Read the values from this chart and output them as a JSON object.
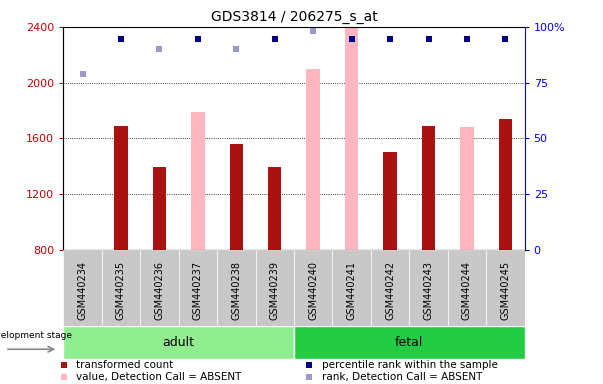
{
  "title": "GDS3814 / 206275_s_at",
  "samples": [
    "GSM440234",
    "GSM440235",
    "GSM440236",
    "GSM440237",
    "GSM440238",
    "GSM440239",
    "GSM440240",
    "GSM440241",
    "GSM440242",
    "GSM440243",
    "GSM440244",
    "GSM440245"
  ],
  "bar_values": [
    null,
    1690,
    1390,
    null,
    1560,
    1390,
    null,
    null,
    1500,
    1690,
    null,
    1740
  ],
  "absent_bar_values": [
    null,
    null,
    null,
    1790,
    null,
    null,
    2100,
    2430,
    null,
    null,
    1680,
    null
  ],
  "rank_values": [
    null,
    2310,
    null,
    2310,
    null,
    2310,
    null,
    2310,
    2310,
    2310,
    2310,
    2310
  ],
  "absent_rank_values": [
    2060,
    null,
    2240,
    null,
    2240,
    null,
    2370,
    null,
    null,
    null,
    null,
    null
  ],
  "ylim": [
    800,
    2400
  ],
  "y2lim": [
    0,
    100
  ],
  "yticks": [
    800,
    1200,
    1600,
    2000,
    2400
  ],
  "y2ticks": [
    0,
    25,
    50,
    75,
    100
  ],
  "y2tick_labels": [
    "0",
    "25",
    "50",
    "75",
    "100%"
  ],
  "bar_color": "#aa1111",
  "absent_bar_color": "#ffb6c1",
  "rank_color": "#00008b",
  "absent_rank_color": "#9999cc",
  "adult_light_color": "#90ee90",
  "fetal_dark_color": "#22cc44",
  "group_bg": "#c8c8c8",
  "plot_bg": "#ffffff",
  "bar_width": 0.35,
  "adult_count": 6,
  "fetal_count": 6
}
